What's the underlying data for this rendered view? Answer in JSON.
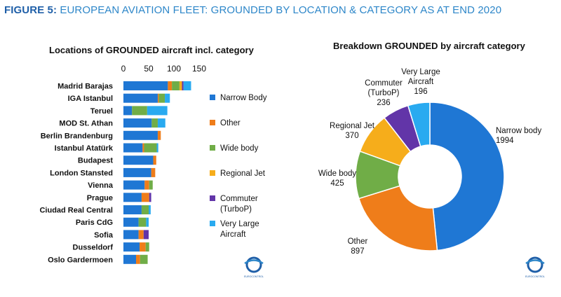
{
  "figure": {
    "title_lead": "FIGURE 5:",
    "title_rest": "EUROPEAN AVIATION FLEET: GROUNDED BY LOCATION & CATEGORY AS AT END 2020"
  },
  "colors": {
    "narrow": "#1f77d4",
    "other": "#ef7d1a",
    "wide": "#70ad47",
    "regional": "#f6ad1b",
    "commuter": "#6235a8",
    "vla": "#29aaf0"
  },
  "legend": [
    {
      "key": "narrow",
      "label": "Narrow Body"
    },
    {
      "key": "other",
      "label": "Other"
    },
    {
      "key": "wide",
      "label": "Wide body"
    },
    {
      "key": "regional",
      "label": "Regional Jet"
    },
    {
      "key": "commuter",
      "label": [
        "Commuter",
        "(TurboP)"
      ]
    },
    {
      "key": "vla",
      "label": [
        "Very Large",
        "Aircraft"
      ]
    }
  ],
  "logo": {
    "label": "EUROCONTROL",
    "icon": "eurocontrol-logo"
  },
  "chart_data": [
    {
      "type": "bar",
      "orientation": "horizontal",
      "stacked": true,
      "title": "Locations of GROUNDED aircraft incl. category",
      "x_ticks": [
        0,
        50,
        100,
        150
      ],
      "xlim": [
        0,
        150
      ],
      "grid": false,
      "legend_position": "right",
      "categories": [
        "Madrid Barajas",
        "IGA Istanbul",
        "Teruel",
        "MOD St. Athan",
        "Berlin Brandenburg",
        "Istanbul Atatürk",
        "Budapest",
        "London Stansted",
        "Vienna",
        "Prague",
        "Ciudad Real Central",
        "Paris CdG",
        "Sofia",
        "Dusseldorf",
        "Oslo Gardermoen"
      ],
      "series": [
        {
          "name": "Narrow Body",
          "key": "narrow",
          "values": [
            88,
            68,
            17,
            56,
            68,
            38,
            59,
            55,
            42,
            36,
            36,
            30,
            30,
            32,
            25
          ]
        },
        {
          "name": "Other",
          "key": "other",
          "values": [
            8,
            2,
            0,
            0,
            6,
            3,
            6,
            8,
            9,
            15,
            0,
            0,
            10,
            12,
            8
          ]
        },
        {
          "name": "Wide body",
          "key": "wide",
          "values": [
            15,
            12,
            30,
            12,
            0,
            25,
            0,
            0,
            7,
            0,
            14,
            15,
            0,
            7,
            15
          ]
        },
        {
          "name": "Regional Jet",
          "key": "regional",
          "values": [
            5,
            0,
            0,
            0,
            0,
            0,
            0,
            0,
            0,
            0,
            0,
            0,
            0,
            0,
            0
          ]
        },
        {
          "name": "Commuter (TurboP)",
          "key": "commuter",
          "values": [
            3,
            0,
            0,
            0,
            0,
            0,
            0,
            0,
            0,
            4,
            0,
            0,
            10,
            0,
            0
          ]
        },
        {
          "name": "Very Large Aircraft",
          "key": "vla",
          "values": [
            15,
            10,
            40,
            15,
            0,
            3,
            0,
            0,
            0,
            0,
            4,
            5,
            0,
            0,
            0
          ]
        }
      ]
    },
    {
      "type": "pie",
      "donut": true,
      "title": "Breakdown GROUNDED by aircraft category",
      "slices": [
        {
          "key": "narrow",
          "label": [
            "Narrow body"
          ],
          "value": 1994,
          "value_label": "1994"
        },
        {
          "key": "other",
          "label": [
            "Other"
          ],
          "value": 897,
          "value_label": "897"
        },
        {
          "key": "wide",
          "label": [
            "Wide body"
          ],
          "value": 425,
          "value_label": "425"
        },
        {
          "key": "regional",
          "label": [
            "Regional Jet"
          ],
          "value": 370,
          "value_label": "370"
        },
        {
          "key": "commuter",
          "label": [
            "Commuter",
            "(TurboP)"
          ],
          "value": 236,
          "value_label": "236"
        },
        {
          "key": "vla",
          "label": [
            "Very Large",
            "Aircraft"
          ],
          "value": 196,
          "value_label": "196"
        }
      ]
    }
  ]
}
